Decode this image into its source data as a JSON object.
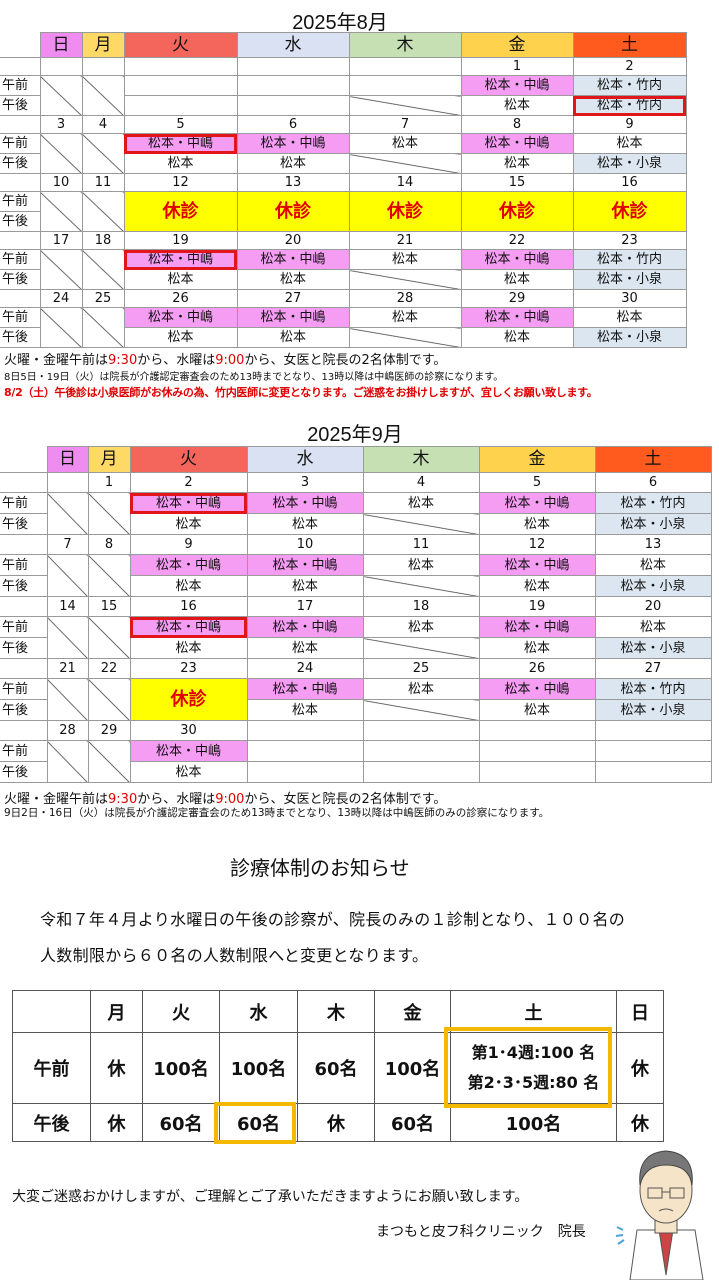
{
  "august": {
    "title": "2025年8月",
    "weekdays": [
      "日",
      "月",
      "火",
      "水",
      "木",
      "金",
      "土"
    ],
    "am_label": "午前",
    "pm_label": "午後",
    "weeks": [
      {
        "dates": [
          "",
          "",
          "",
          "",
          "",
          "1",
          "2"
        ],
        "am": [
          "/",
          "/",
          "",
          "",
          "",
          {
            "t": "松本・中嶋",
            "c": "pink"
          },
          {
            "t": "松本・竹内",
            "c": "blue"
          }
        ],
        "pm": [
          null,
          null,
          "",
          "",
          "/",
          "松本",
          {
            "t": "松本・竹内",
            "c": "blue",
            "hl": true
          }
        ]
      },
      {
        "dates": [
          "3",
          "4",
          "5",
          "6",
          "7",
          "8",
          "9"
        ],
        "am": [
          "/",
          "/",
          {
            "t": "松本・中嶋",
            "c": "pink",
            "hl": true
          },
          {
            "t": "松本・中嶋",
            "c": "pink"
          },
          "松本",
          {
            "t": "松本・中嶋",
            "c": "pink"
          },
          "松本"
        ],
        "pm": [
          null,
          null,
          "松本",
          "松本",
          "/",
          "松本",
          {
            "t": "松本・小泉",
            "c": "blue"
          }
        ]
      },
      {
        "dates": [
          "10",
          "11",
          "12",
          "13",
          "14",
          "15",
          "16"
        ],
        "am": [
          "/",
          "/",
          {
            "t": "休診",
            "c": "closed"
          },
          {
            "t": "休診",
            "c": "closed"
          },
          {
            "t": "休診",
            "c": "closed"
          },
          {
            "t": "休診",
            "c": "closed"
          },
          {
            "t": "休診",
            "c": "closed"
          }
        ],
        "pm": [
          null,
          null,
          null,
          null,
          null,
          null,
          null
        ]
      },
      {
        "dates": [
          "17",
          "18",
          "19",
          "20",
          "21",
          "22",
          "23"
        ],
        "am": [
          "/",
          "/",
          {
            "t": "松本・中嶋",
            "c": "pink",
            "hl": true
          },
          {
            "t": "松本・中嶋",
            "c": "pink"
          },
          "松本",
          {
            "t": "松本・中嶋",
            "c": "pink"
          },
          {
            "t": "松本・竹内",
            "c": "blue"
          }
        ],
        "pm": [
          null,
          null,
          "松本",
          "松本",
          "/",
          "松本",
          {
            "t": "松本・小泉",
            "c": "blue"
          }
        ]
      },
      {
        "dates": [
          "24",
          "25",
          "26",
          "27",
          "28",
          "29",
          "30"
        ],
        "am": [
          "/",
          "/",
          {
            "t": "松本・中嶋",
            "c": "pink"
          },
          {
            "t": "松本・中嶋",
            "c": "pink"
          },
          "松本",
          {
            "t": "松本・中嶋",
            "c": "pink"
          },
          "松本"
        ],
        "pm": [
          null,
          null,
          "松本",
          "松本",
          "/",
          "松本",
          {
            "t": "松本・小泉",
            "c": "blue"
          }
        ]
      }
    ],
    "notes": {
      "line1_a": "火曜・金曜午前は",
      "line1_t1": "9:30",
      "line1_b": "から、水曜は",
      "line1_t2": "9:00",
      "line1_c": "から、女医と院長の2名体制です。",
      "line2": "8日5日・19日（火）は院長が介護認定審査会のため13時までとなり、13時以降は中嶋医師の診察になります。",
      "line3": "8/2（土）午後診は小泉医師がお休みの為、竹内医師に変更となります。ご迷惑をお掛けしますが、宜しくお願い致します。"
    }
  },
  "september": {
    "title": "2025年9月",
    "weekdays": [
      "日",
      "月",
      "火",
      "水",
      "木",
      "金",
      "土"
    ],
    "am_label": "午前",
    "pm_label": "午後",
    "weeks": [
      {
        "dates": [
          "",
          "1",
          "2",
          "3",
          "4",
          "5",
          "6"
        ],
        "am": [
          "/",
          "/",
          {
            "t": "松本・中嶋",
            "c": "pink",
            "hl": true
          },
          {
            "t": "松本・中嶋",
            "c": "pink"
          },
          "松本",
          {
            "t": "松本・中嶋",
            "c": "pink"
          },
          {
            "t": "松本・竹内",
            "c": "blue"
          }
        ],
        "pm": [
          null,
          null,
          "松本",
          "松本",
          "/",
          "松本",
          {
            "t": "松本・小泉",
            "c": "blue"
          }
        ]
      },
      {
        "dates": [
          "7",
          "8",
          "9",
          "10",
          "11",
          "12",
          "13"
        ],
        "am": [
          "/",
          "/",
          {
            "t": "松本・中嶋",
            "c": "pink"
          },
          {
            "t": "松本・中嶋",
            "c": "pink"
          },
          "松本",
          {
            "t": "松本・中嶋",
            "c": "pink"
          },
          "松本"
        ],
        "pm": [
          null,
          null,
          "松本",
          "松本",
          "/",
          "松本",
          {
            "t": "松本・小泉",
            "c": "blue"
          }
        ]
      },
      {
        "dates": [
          "14",
          "15",
          "16",
          "17",
          "18",
          "19",
          "20"
        ],
        "am": [
          "/",
          "/",
          {
            "t": "松本・中嶋",
            "c": "pink",
            "hl": true
          },
          {
            "t": "松本・中嶋",
            "c": "pink"
          },
          "松本",
          {
            "t": "松本・中嶋",
            "c": "pink"
          },
          "松本"
        ],
        "pm": [
          null,
          null,
          "松本",
          "松本",
          "/",
          "松本",
          {
            "t": "松本・小泉",
            "c": "blue"
          }
        ]
      },
      {
        "dates": [
          "21",
          "22",
          "23",
          "24",
          "25",
          "26",
          "27"
        ],
        "am": [
          "/",
          "/",
          {
            "t": "休診",
            "c": "closed"
          },
          {
            "t": "松本・中嶋",
            "c": "pink"
          },
          "松本",
          {
            "t": "松本・中嶋",
            "c": "pink"
          },
          {
            "t": "松本・竹内",
            "c": "blue"
          }
        ],
        "pm": [
          null,
          null,
          null,
          "松本",
          "/",
          "松本",
          {
            "t": "松本・小泉",
            "c": "blue"
          }
        ]
      },
      {
        "dates": [
          "28",
          "29",
          "30",
          "",
          "",
          "",
          ""
        ],
        "am": [
          "/",
          "/",
          {
            "t": "松本・中嶋",
            "c": "pink"
          },
          "",
          "",
          "",
          ""
        ],
        "pm": [
          null,
          null,
          "松本",
          "",
          "",
          "",
          ""
        ]
      }
    ],
    "notes": {
      "line1_a": "火曜・金曜午前は",
      "line1_t1": "9:30",
      "line1_b": "から、水曜は",
      "line1_t2": "9:00",
      "line1_c": "から、女医と院長の2名体制です。",
      "line2": "9日2日・16日（火）は院長が介護認定審査会のため13時までとなり、13時以降は中嶋医師のみの診察になります。"
    }
  },
  "header_colors": [
    "#ee8cf0",
    "#ffd966",
    "#f4665c",
    "#d9e1f2",
    "#c6e0b4",
    "#ffd24d",
    "#ff5b1f"
  ],
  "notice": {
    "heading": "診療体制のお知らせ",
    "para1": "令和７年４月より水曜日の午後の診察が、院長のみの１診制となり、１００名の",
    "para2": "人数制限から６０名の人数制限へと変更となります。",
    "table": {
      "headers": [
        "",
        "月",
        "火",
        "水",
        "木",
        "金",
        "土",
        "日"
      ],
      "am": [
        "午前",
        "休",
        "100名",
        "100名",
        "60名",
        "100名",
        "",
        "休"
      ],
      "sat_am_1": "第1･4週:100 名",
      "sat_am_2": "第2･3･5週:80 名",
      "pm": [
        "午後",
        "休",
        "60名",
        "60名",
        "休",
        "60名",
        "100名",
        "休"
      ]
    },
    "apology": "大変ご迷惑おかけしますが、ご理解とご了承いただきますようにお願い致します。",
    "signature": "まつもと皮フ科クリニック　院長"
  }
}
